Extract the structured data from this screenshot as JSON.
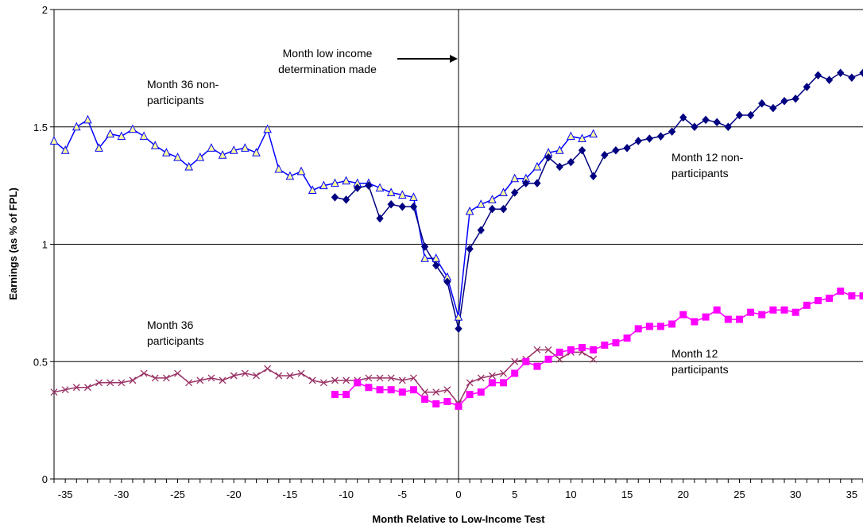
{
  "chart_data": {
    "type": "line",
    "title": "",
    "xlabel": "Month Relative to Low-Income Test",
    "ylabel": "Earnings (as % of FPL)",
    "xlim": [
      -36,
      36
    ],
    "ylim": [
      0,
      2
    ],
    "x_ticks": [
      -35,
      -30,
      -25,
      -20,
      -15,
      -10,
      -5,
      0,
      5,
      10,
      15,
      20,
      25,
      30,
      35
    ],
    "y_ticks": [
      0,
      0.5,
      1,
      1.5,
      2
    ],
    "x_tick_labels": [
      "-35",
      "-30",
      "-25",
      "-20",
      "-15",
      "-10",
      "-5",
      "0",
      "5",
      "10",
      "15",
      "20",
      "25",
      "30",
      "35"
    ],
    "y_tick_labels": [
      "0",
      "0.5",
      "1",
      "1.5",
      "2"
    ],
    "grid": "horizontal",
    "vertical_reference_line_x": 0,
    "series": [
      {
        "name": "Month 36 non-participants",
        "color": "#0000ff",
        "marker": "triangle",
        "marker_fill": "#ffff99",
        "x": [
          -36,
          -35,
          -34,
          -33,
          -32,
          -31,
          -30,
          -29,
          -28,
          -27,
          -26,
          -25,
          -24,
          -23,
          -22,
          -21,
          -20,
          -19,
          -18,
          -17,
          -16,
          -15,
          -14,
          -13,
          -12,
          -11,
          -10,
          -9,
          -8,
          -7,
          -6,
          -5,
          -4,
          -3,
          -2,
          -1,
          0,
          1,
          2,
          3,
          4,
          5,
          6,
          7,
          8,
          9,
          10,
          11,
          12
        ],
        "values": [
          1.44,
          1.4,
          1.5,
          1.53,
          1.41,
          1.47,
          1.46,
          1.49,
          1.46,
          1.42,
          1.39,
          1.37,
          1.33,
          1.37,
          1.41,
          1.38,
          1.4,
          1.41,
          1.39,
          1.49,
          1.32,
          1.29,
          1.31,
          1.23,
          1.25,
          1.26,
          1.27,
          1.26,
          1.26,
          1.24,
          1.22,
          1.21,
          1.2,
          0.94,
          0.94,
          0.86,
          0.69,
          1.14,
          1.17,
          1.19,
          1.22,
          1.28,
          1.28,
          1.33,
          1.39,
          1.4,
          1.46,
          1.45,
          1.47
        ]
      },
      {
        "name": "Month 12 non-participants",
        "color": "#000080",
        "marker": "diamond",
        "marker_fill": "#000080",
        "x": [
          -11,
          -10,
          -9,
          -8,
          -7,
          -6,
          -5,
          -4,
          -3,
          -2,
          -1,
          0,
          1,
          2,
          3,
          4,
          5,
          6,
          7,
          8,
          9,
          10,
          11,
          12,
          13,
          14,
          15,
          16,
          17,
          18,
          19,
          20,
          21,
          22,
          23,
          24,
          25,
          26,
          27,
          28,
          29,
          30,
          31,
          32,
          33,
          34,
          35,
          36
        ],
        "values": [
          1.2,
          1.19,
          1.24,
          1.25,
          1.11,
          1.17,
          1.16,
          1.16,
          0.99,
          0.91,
          0.84,
          0.64,
          0.98,
          1.06,
          1.15,
          1.15,
          1.22,
          1.26,
          1.26,
          1.37,
          1.33,
          1.35,
          1.4,
          1.29,
          1.38,
          1.4,
          1.41,
          1.44,
          1.45,
          1.46,
          1.48,
          1.54,
          1.5,
          1.53,
          1.52,
          1.5,
          1.55,
          1.55,
          1.6,
          1.58,
          1.61,
          1.62,
          1.67,
          1.72,
          1.7,
          1.73,
          1.71,
          1.73
        ]
      },
      {
        "name": "Month 36 participants",
        "color": "#993366",
        "marker": "x",
        "marker_fill": "#993366",
        "x": [
          -36,
          -35,
          -34,
          -33,
          -32,
          -31,
          -30,
          -29,
          -28,
          -27,
          -26,
          -25,
          -24,
          -23,
          -22,
          -21,
          -20,
          -19,
          -18,
          -17,
          -16,
          -15,
          -14,
          -13,
          -12,
          -11,
          -10,
          -9,
          -8,
          -7,
          -6,
          -5,
          -4,
          -3,
          -2,
          -1,
          0,
          1,
          2,
          3,
          4,
          5,
          6,
          7,
          8,
          9,
          10,
          11,
          12
        ],
        "values": [
          0.37,
          0.38,
          0.39,
          0.39,
          0.41,
          0.41,
          0.41,
          0.42,
          0.45,
          0.43,
          0.43,
          0.45,
          0.41,
          0.42,
          0.43,
          0.42,
          0.44,
          0.45,
          0.44,
          0.47,
          0.44,
          0.44,
          0.45,
          0.42,
          0.41,
          0.42,
          0.42,
          0.42,
          0.43,
          0.43,
          0.43,
          0.42,
          0.43,
          0.37,
          0.37,
          0.38,
          0.32,
          0.41,
          0.43,
          0.44,
          0.45,
          0.5,
          0.51,
          0.55,
          0.55,
          0.51,
          0.54,
          0.54,
          0.51
        ]
      },
      {
        "name": "Month 12 participants",
        "color": "#ff00ff",
        "marker": "square",
        "marker_fill": "#ff00ff",
        "x": [
          -11,
          -10,
          -9,
          -8,
          -7,
          -6,
          -5,
          -4,
          -3,
          -2,
          -1,
          0,
          1,
          2,
          3,
          4,
          5,
          6,
          7,
          8,
          9,
          10,
          11,
          12,
          13,
          14,
          15,
          16,
          17,
          18,
          19,
          20,
          21,
          22,
          23,
          24,
          25,
          26,
          27,
          28,
          29,
          30,
          31,
          32,
          33,
          34,
          35,
          36
        ],
        "values": [
          0.36,
          0.36,
          0.41,
          0.39,
          0.38,
          0.38,
          0.37,
          0.38,
          0.34,
          0.32,
          0.33,
          0.31,
          0.36,
          0.37,
          0.41,
          0.41,
          0.45,
          0.5,
          0.48,
          0.51,
          0.54,
          0.55,
          0.56,
          0.55,
          0.57,
          0.58,
          0.6,
          0.64,
          0.65,
          0.65,
          0.66,
          0.7,
          0.67,
          0.69,
          0.72,
          0.68,
          0.68,
          0.71,
          0.7,
          0.72,
          0.72,
          0.71,
          0.74,
          0.76,
          0.77,
          0.8,
          0.78,
          0.78
        ]
      }
    ],
    "annotations": [
      {
        "id": "arrow",
        "text_lines": [
          "Month low income",
          "determination made"
        ],
        "arrow": true
      },
      {
        "id": "m36np",
        "text_lines": [
          "Month 36 non-",
          "participants"
        ]
      },
      {
        "id": "m12np",
        "text_lines": [
          "Month 12 non-",
          "participants"
        ]
      },
      {
        "id": "m36p",
        "text_lines": [
          "Month 36",
          "participants"
        ]
      },
      {
        "id": "m12p",
        "text_lines": [
          "Month 12",
          "participants"
        ]
      }
    ]
  }
}
